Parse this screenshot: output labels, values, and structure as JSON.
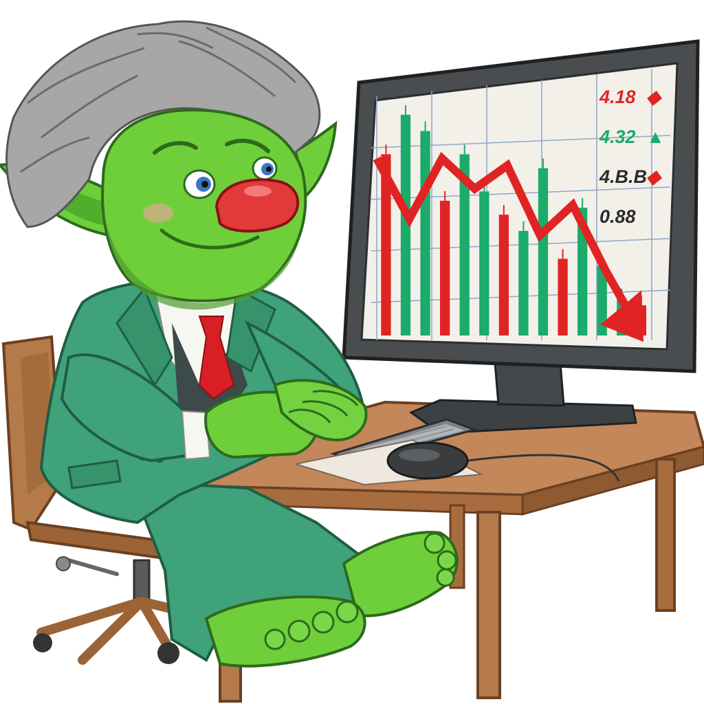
{
  "palette": {
    "skin": "#6fcf3a",
    "skin_dark": "#3f8f2a",
    "suit": "#3fa27a",
    "suit_dark": "#2a7a5a",
    "hair": "#9a9a9a",
    "nose": "#e23a3a",
    "tie": "#d81f26",
    "wood": "#b87a4b",
    "wood_dark": "#7a4a2a",
    "monitor": "#4a4d50",
    "screen": "#f3f0ea",
    "up": "#1bab6a",
    "down": "#e02424"
  },
  "screen_chart": {
    "type": "bar",
    "direction": "falling",
    "bars": [
      {
        "color": "down",
        "value": 0.78
      },
      {
        "color": "up",
        "value": 0.95
      },
      {
        "color": "up",
        "value": 0.88
      },
      {
        "color": "down",
        "value": 0.58
      },
      {
        "color": "up",
        "value": 0.78
      },
      {
        "color": "up",
        "value": 0.62
      },
      {
        "color": "down",
        "value": 0.52
      },
      {
        "color": "up",
        "value": 0.45
      },
      {
        "color": "up",
        "value": 0.72
      },
      {
        "color": "down",
        "value": 0.33
      },
      {
        "color": "up",
        "value": 0.55
      },
      {
        "color": "up",
        "value": 0.3
      },
      {
        "color": "up",
        "value": 0.16
      },
      {
        "color": "down",
        "value": 0.13
      }
    ],
    "trend_line": [
      0.88,
      0.62,
      0.88,
      0.75,
      0.85,
      0.55,
      0.68,
      0.4,
      0.15
    ],
    "tickers": [
      {
        "text": "4.18",
        "mark": "◆",
        "text_color": "down",
        "mark_color": "down"
      },
      {
        "text": "4.32",
        "mark": "▲",
        "text_color": "up",
        "mark_color": "up"
      },
      {
        "text": "4.B.B",
        "mark": "◆",
        "text_color": "ink",
        "mark_color": "down"
      },
      {
        "text": "0.88",
        "mark": "",
        "text_color": "ink",
        "mark_color": "up"
      }
    ]
  }
}
